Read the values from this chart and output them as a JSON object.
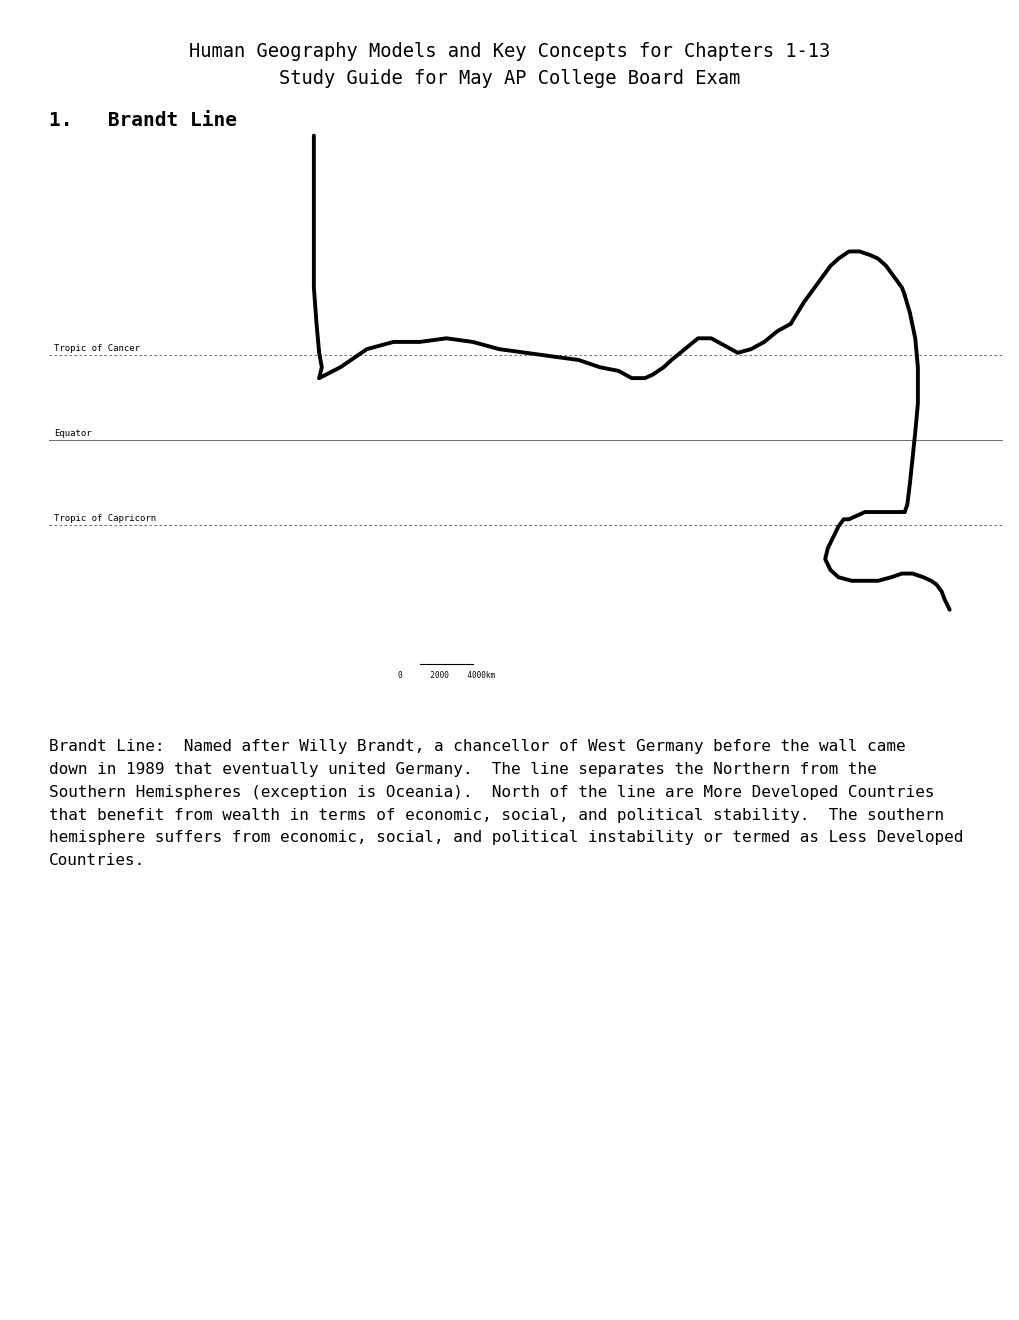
{
  "title_line1": "Human Geography Models and Key Concepts for Chapters 1-13",
  "title_line2": "Study Guide for May AP College Board Exam",
  "section_heading": "1.   Brandt Line",
  "body_text": "Brandt Line:  Named after Willy Brandt, a chancellor of West Germany before the wall came\ndown in 1989 that eventually united Germany.  The line separates the Northern from the\nSouthern Hemispheres (exception is Oceania).  North of the line are More Developed Countries\nthat benefit from wealth in terms of economic, social, and political stability.  The southern\nhemisphere suffers from economic, social, and political instability or termed as Less Developed\nCountries.",
  "map_labels": [
    "Tropic of Cancer",
    "Equator",
    "Tropic of Capricorn"
  ],
  "background_color": "#ffffff",
  "text_color": "#000000",
  "title_fontsize": 13.5,
  "section_fontsize": 14,
  "body_fontsize": 11.5,
  "map_label_fontsize": 6.5,
  "brandt_lw": 2.8,
  "map_xlim": [
    -180,
    180
  ],
  "map_ylim": [
    -70,
    85
  ],
  "tropic_cancer_lat": 23.5,
  "equator_lat": 0,
  "tropic_capricorn_lat": -23.5
}
